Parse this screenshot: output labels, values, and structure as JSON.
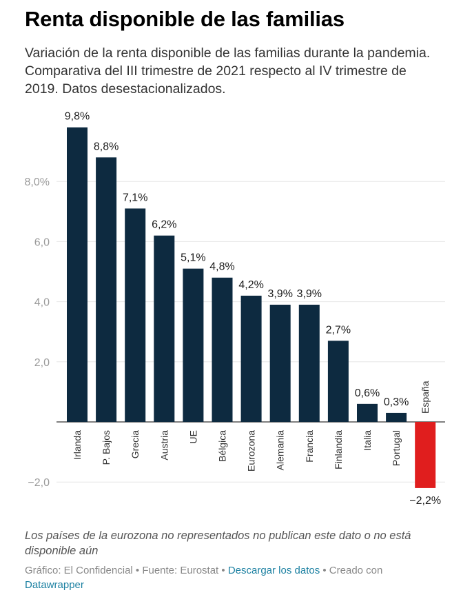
{
  "header": {
    "title": "Renta disponible de las familias",
    "subtitle": "Variación de la renta disponible de las familias durante la pandemia. Comparativa del III trimestre de 2021 respecto al IV trimestre de 2019. Datos desestacionalizados."
  },
  "chart_data": {
    "type": "bar",
    "categories": [
      "Irlanda",
      "P. Bajos",
      "Grecia",
      "Austria",
      "UE",
      "Bélgica",
      "Eurozona",
      "Alemania",
      "Francia",
      "Finlandia",
      "Italia",
      "Portugal",
      "España"
    ],
    "values": [
      9.8,
      8.8,
      7.1,
      6.2,
      5.1,
      4.8,
      4.2,
      3.9,
      3.9,
      2.7,
      0.6,
      0.3,
      -2.2
    ],
    "value_labels": [
      "9,8%",
      "8,8%",
      "7,1%",
      "6,2%",
      "5,1%",
      "4,8%",
      "4,2%",
      "3,9%",
      "3,9%",
      "2,7%",
      "0,6%",
      "0,3%",
      "−2,2%"
    ],
    "y_ticks": [
      8,
      6,
      4,
      2,
      -2
    ],
    "y_tick_labels": [
      "8,0%",
      "6,0",
      "4,0",
      "2,0",
      "−2,0"
    ],
    "ylim": [
      -2.2,
      9.8
    ],
    "grid": true,
    "colors": {
      "positive": "#0d2a40",
      "negative": "#e01e1e"
    }
  },
  "notes": {
    "footnote": "Los países de la eurozona no representados no publican este dato o no está disponible aún"
  },
  "footer": {
    "credit": "Gráfico: El Confidencial • Fuente: Eurostat • ",
    "download_link": "Descargar los datos",
    "created_with": " • Creado con ",
    "tool_link": "Datawrapper"
  }
}
